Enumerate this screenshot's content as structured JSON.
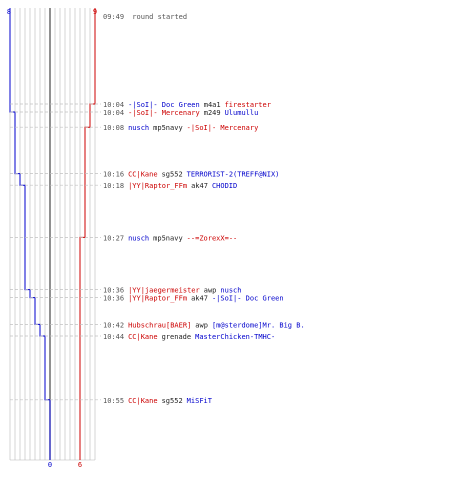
{
  "colors": {
    "blue": "#0000cc",
    "red": "#cc0000",
    "grid": "#b8b8b8",
    "center": "#555555",
    "dash": "#c0c0c0",
    "time": "#555555",
    "event": "#222222",
    "background": "#ffffff"
  },
  "scoreboard": {
    "blue_start": "8",
    "red_start": "9",
    "blue_end": "0",
    "red_end": "6"
  },
  "header_event": {
    "time": "09:49",
    "text": "round started"
  },
  "kills": [
    {
      "time": "10:04",
      "killer": "-|SoI|- Doc Green",
      "weapon": "m4a1",
      "victim": "firestarter",
      "killer_team": "blue",
      "victim_team": "red"
    },
    {
      "time": "10:04",
      "killer": "-|SoI|- Mercenary",
      "weapon": "m249",
      "victim": "Ulumullu",
      "killer_team": "red",
      "victim_team": "blue"
    },
    {
      "time": "10:08",
      "killer": "nusch",
      "weapon": "mp5navy",
      "victim": "-|SoI|- Mercenary",
      "killer_team": "blue",
      "victim_team": "red"
    },
    {
      "time": "10:16",
      "killer": "CC|Kane",
      "weapon": "sg552",
      "victim": "TERRORIST-2(TREFF@NIX)",
      "killer_team": "red",
      "victim_team": "blue"
    },
    {
      "time": "10:18",
      "killer": "|YY|Raptor_FFm",
      "weapon": "ak47",
      "victim": "CHODID",
      "killer_team": "red",
      "victim_team": "blue"
    },
    {
      "time": "10:27",
      "killer": "nusch",
      "weapon": "mp5navy",
      "victim": "--=ZorexX=--",
      "killer_team": "blue",
      "victim_team": "red"
    },
    {
      "time": "10:36",
      "killer": "|YY|jaegermeister",
      "weapon": "awp",
      "victim": "nusch",
      "killer_team": "red",
      "victim_team": "blue"
    },
    {
      "time": "10:36",
      "killer": "|YY|Raptor_FFm",
      "weapon": "ak47",
      "victim": "-|SoI|- Doc Green",
      "killer_team": "red",
      "victim_team": "blue"
    },
    {
      "time": "10:42",
      "killer": "Hubschrau[BAER]",
      "weapon": "awp",
      "victim": "[m@sterdome]Mr. Big B.",
      "killer_team": "red",
      "victim_team": "blue"
    },
    {
      "time": "10:44",
      "killer": "CC|Kane",
      "weapon": "grenade",
      "victim": "MasterChicken-TMHC-",
      "killer_team": "red",
      "victim_team": "blue"
    },
    {
      "time": "10:55",
      "killer": "CC|Kane",
      "weapon": "sg552",
      "victim": "MiSFiT",
      "killer_team": "red",
      "victim_team": "blue"
    }
  ]
}
